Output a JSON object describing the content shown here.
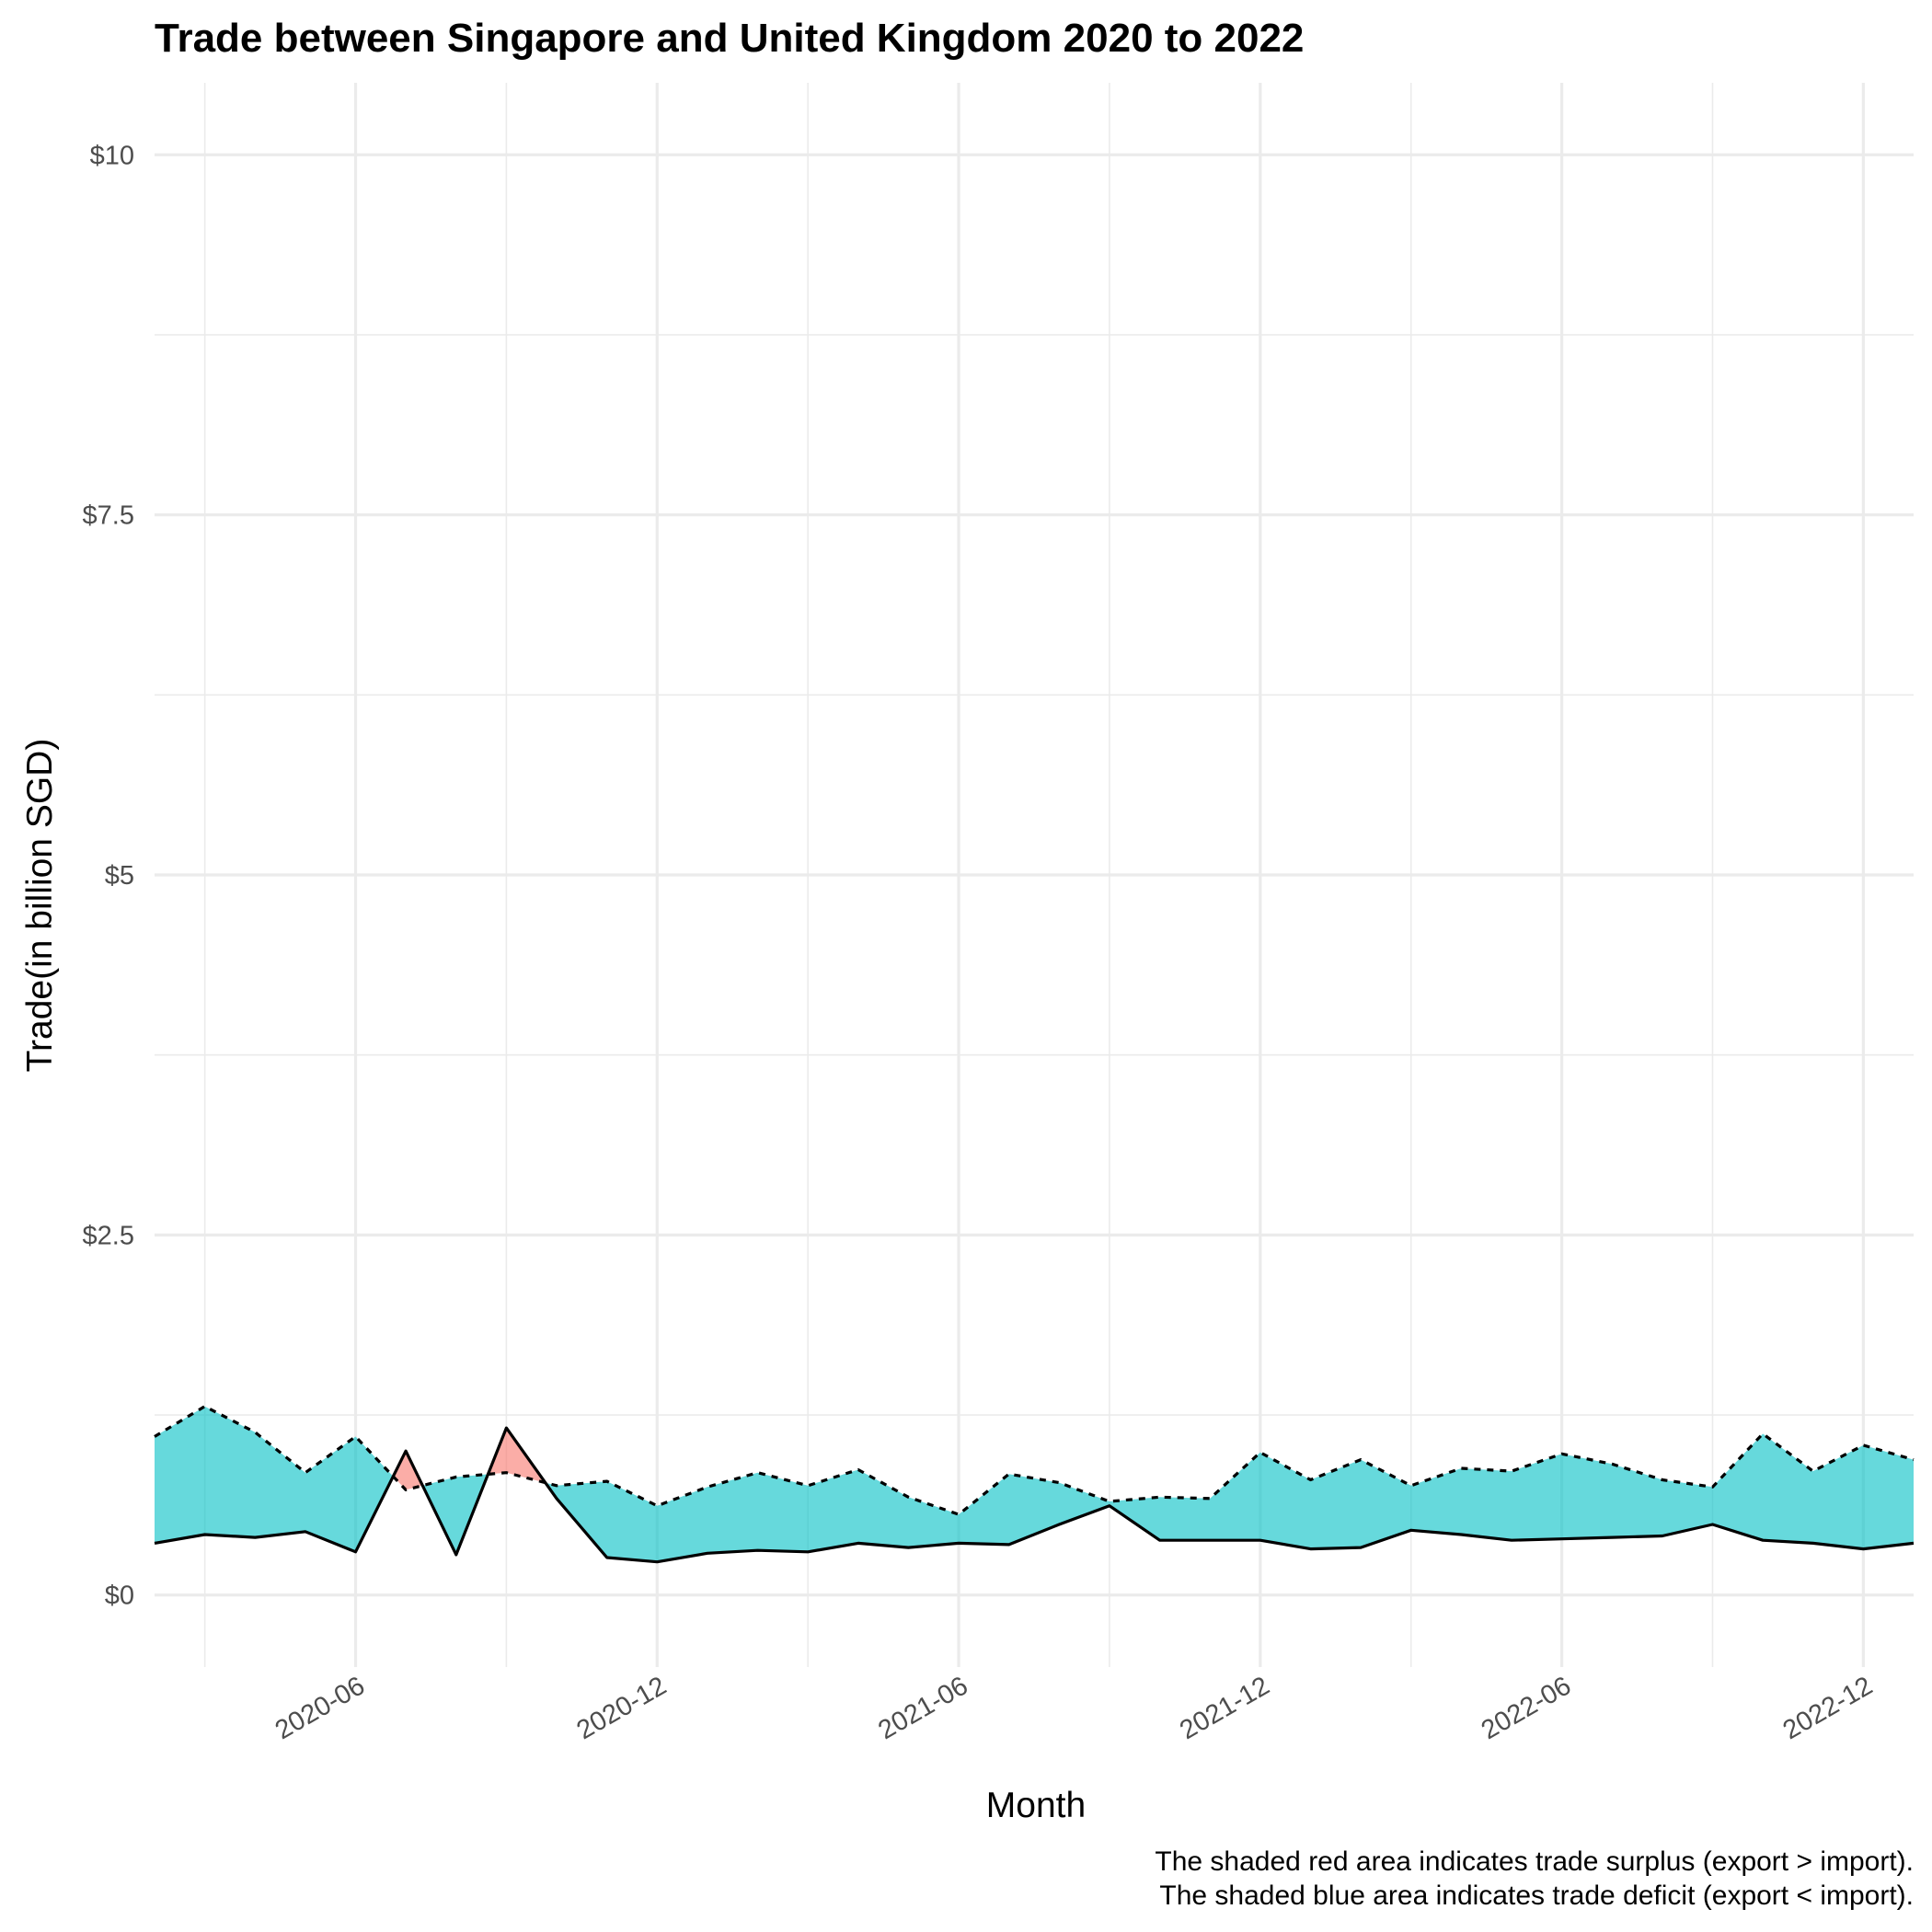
{
  "chart_data": {
    "type": "area",
    "title": "Trade between Singapore and United Kingdom  2020 to 2022",
    "xlabel": "Month",
    "ylabel": "Trade(in billion SGD)",
    "x": [
      "2020-02",
      "2020-03",
      "2020-04",
      "2020-05",
      "2020-06",
      "2020-07",
      "2020-08",
      "2020-09",
      "2020-10",
      "2020-11",
      "2020-12",
      "2021-01",
      "2021-02",
      "2021-03",
      "2021-04",
      "2021-05",
      "2021-06",
      "2021-07",
      "2021-08",
      "2021-09",
      "2021-10",
      "2021-11",
      "2021-12",
      "2022-01",
      "2022-02",
      "2022-03",
      "2022-04",
      "2022-05",
      "2022-06",
      "2022-07",
      "2022-08",
      "2022-09",
      "2022-10",
      "2022-11",
      "2022-12",
      "2023-01"
    ],
    "x_tick_labels": [
      "2020-06",
      "2020-12",
      "2021-06",
      "2021-12",
      "2022-06",
      "2022-12"
    ],
    "y_tick_labels": [
      "$0",
      "$2.5",
      "$5",
      "$7.5",
      "$10"
    ],
    "y_ticks": [
      0,
      2.5,
      5,
      7.5,
      10
    ],
    "ylim": [
      -0.5,
      10.5
    ],
    "xlim": [
      "2020-02",
      "2023-01"
    ],
    "series": [
      {
        "values": [
          0.36,
          0.42,
          0.4,
          0.44,
          0.3,
          1.0,
          0.28,
          1.16,
          0.67,
          0.26,
          0.23,
          0.29,
          0.31,
          0.3,
          0.36,
          0.33,
          0.36,
          0.35,
          0.49,
          0.62,
          0.38,
          0.38,
          0.38,
          0.32,
          0.33,
          0.45,
          0.42,
          0.38,
          0.39,
          0.4,
          0.41,
          0.49,
          0.38,
          0.36,
          0.32,
          0.36
        ],
        "line": "solid"
      },
      {
        "values": [
          1.1,
          1.31,
          1.13,
          0.85,
          1.1,
          0.73,
          0.82,
          0.85,
          0.76,
          0.79,
          0.62,
          0.75,
          0.85,
          0.76,
          0.87,
          0.68,
          0.56,
          0.84,
          0.78,
          0.65,
          0.68,
          0.67,
          0.99,
          0.8,
          0.94,
          0.76,
          0.88,
          0.86,
          0.98,
          0.91,
          0.8,
          0.75,
          1.12,
          0.86,
          1.04,
          0.94
        ],
        "line": "dashed"
      }
    ],
    "fill_colors": {
      "surplus": "#F8766D",
      "deficit": "#00BFC4"
    },
    "fill_opacity": 0.6,
    "grid": true,
    "legend": "none",
    "caption_lines": [
      "The shaded red area indicates trade surplus (export > import).",
      "The shaded blue area indicates trade deficit (export < import)."
    ]
  }
}
